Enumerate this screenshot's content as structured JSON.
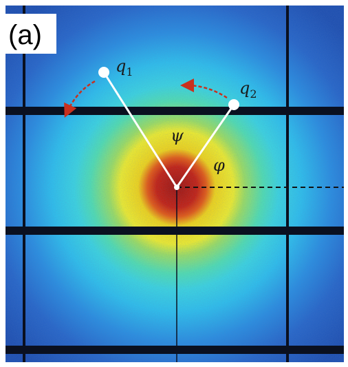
{
  "panel_label": "(a)",
  "annotations": {
    "q1": {
      "symbol": "q",
      "subscript": "1"
    },
    "q2": {
      "symbol": "q",
      "subscript": "2"
    },
    "psi": "ψ",
    "phi": "φ"
  }
}
